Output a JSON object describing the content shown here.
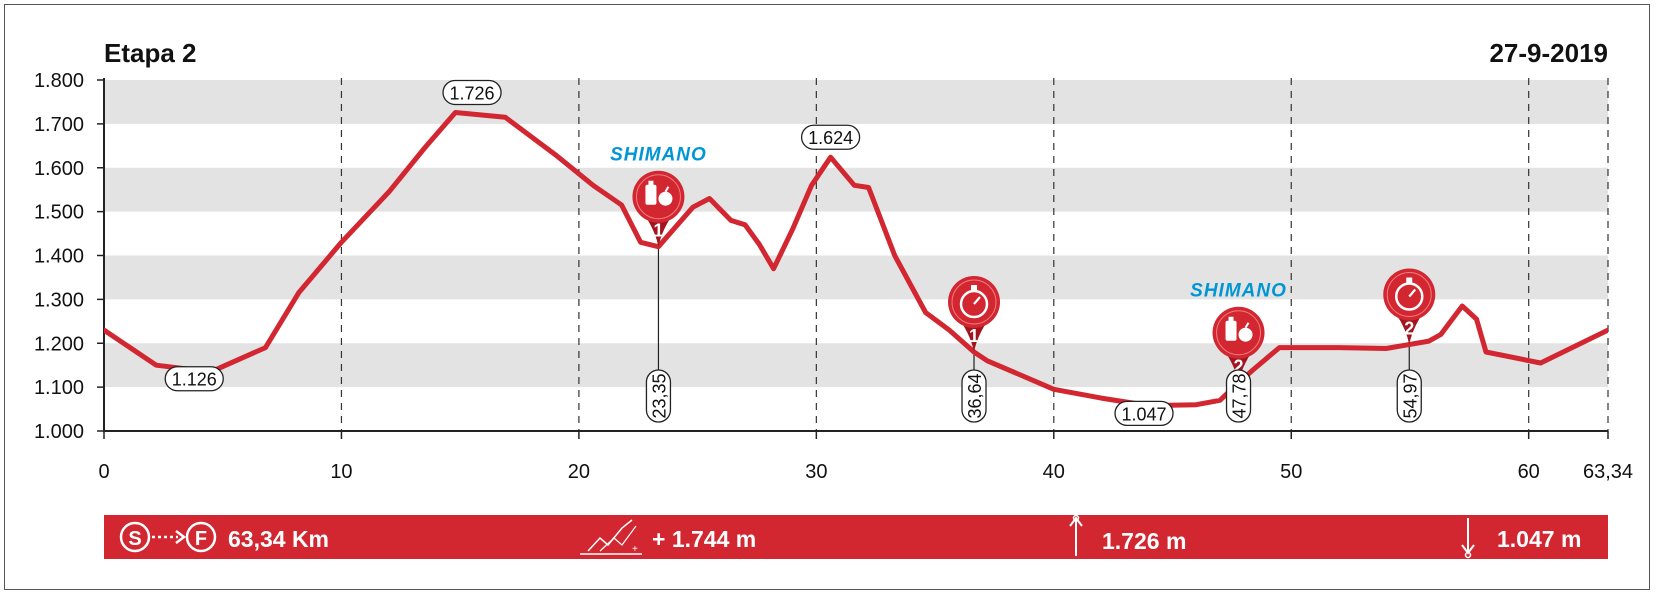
{
  "header": {
    "stage_title": "Etapa 2",
    "date": "27-9-2019"
  },
  "chart_data": {
    "type": "area",
    "title": "Etapa 2",
    "xlabel": "",
    "ylabel": "",
    "xlim": [
      0,
      63.34
    ],
    "ylim": [
      1000,
      1800
    ],
    "x_ticks": [
      0,
      10,
      20,
      30,
      40,
      50,
      60,
      63.34
    ],
    "x_tick_labels": [
      "0",
      "10",
      "20",
      "30",
      "40",
      "50",
      "60",
      "63,34"
    ],
    "y_ticks": [
      1000,
      1100,
      1200,
      1300,
      1400,
      1500,
      1600,
      1700,
      1800
    ],
    "y_tick_labels": [
      "1.000",
      "1.100",
      "1.200",
      "1.300",
      "1.400",
      "1.500",
      "1.600",
      "1.700",
      "1.800"
    ],
    "grid": "horizontal bands, vertical dashed lines",
    "series": [
      {
        "x": [
          0,
          2.2,
          4.5,
          6.8,
          8.2,
          10,
          12,
          13.5,
          14.8,
          16.9,
          19,
          20.6,
          21.8,
          22.6,
          23.35,
          24.8,
          25.5,
          26.4,
          27,
          27.6,
          28.2,
          29,
          29.8,
          30.6,
          31.6,
          32.2,
          33.3,
          34.6,
          35.6,
          36.64,
          37.2,
          38.5,
          40,
          42,
          44,
          46,
          47,
          47.78,
          48.4,
          49.5,
          52,
          54,
          55.8,
          56.3,
          57.2,
          57.8,
          58.2,
          60.5,
          63.34
        ],
        "y": [
          1230,
          1150,
          1135,
          1190,
          1315,
          1430,
          1545,
          1645,
          1726,
          1715,
          1630,
          1560,
          1515,
          1430,
          1420,
          1510,
          1530,
          1480,
          1470,
          1425,
          1370,
          1460,
          1560,
          1624,
          1560,
          1555,
          1400,
          1270,
          1230,
          1180,
          1160,
          1130,
          1095,
          1075,
          1058,
          1060,
          1070,
          1110,
          1140,
          1190,
          1190,
          1188,
          1205,
          1220,
          1285,
          1255,
          1180,
          1155,
          1230
        ]
      }
    ],
    "peaks": [
      {
        "x": 3.8,
        "y": 1126,
        "label": "1.126"
      },
      {
        "x": 15.5,
        "y": 1726,
        "label": "1.726"
      },
      {
        "x": 30.6,
        "y": 1624,
        "label": "1.624"
      },
      {
        "x": 43.8,
        "y": 1047,
        "label": "1.047"
      }
    ],
    "markers": [
      {
        "km": 23.35,
        "km_label": "23,35",
        "kind": "feed",
        "number": "1",
        "icon": "feed-zone-icon",
        "sponsor": "SHIMANO"
      },
      {
        "km": 36.64,
        "km_label": "36,64",
        "kind": "time",
        "number": "1",
        "icon": "stopwatch-icon",
        "sponsor": ""
      },
      {
        "km": 47.78,
        "km_label": "47,78",
        "kind": "feed",
        "number": "2",
        "icon": "feed-zone-icon",
        "sponsor": "SHIMANO"
      },
      {
        "km": 54.97,
        "km_label": "54,97",
        "kind": "time",
        "number": "2",
        "icon": "stopwatch-icon",
        "sponsor": ""
      }
    ]
  },
  "summary_bar": {
    "start_letter": "S",
    "finish_letter": "F",
    "distance": "63,34 Km",
    "gain_plus": "+",
    "gain": "+ 1.744 m",
    "max_altitude": "1.726 m",
    "min_altitude": "1.047 m"
  },
  "colors": {
    "profile_line": "#d22630",
    "marker_fill": "#d22630",
    "marker_fill_dark": "#a3151e",
    "band": "#e3e3e3",
    "sponsor": "#0096d6",
    "summary_bar": "#d22630"
  }
}
